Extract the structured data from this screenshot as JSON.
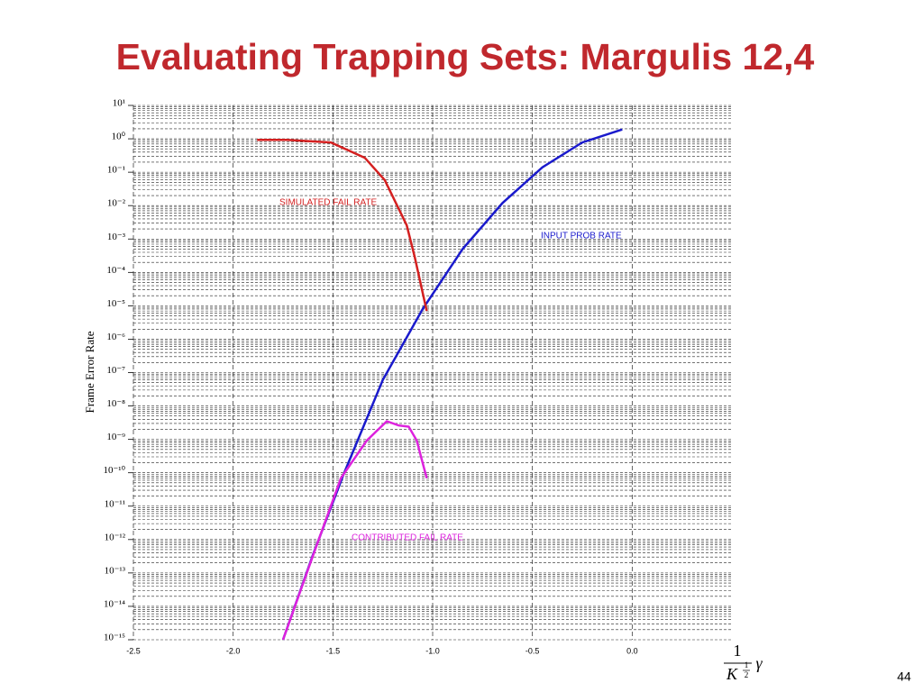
{
  "chart_data": {
    "type": "line",
    "title": "Evaluating Trapping Sets: Margulis 12,4",
    "y_label": "Frame Error Rate",
    "x_label": {
      "numerator": "1",
      "base": "K",
      "exponent_numerator": "1",
      "exponent_denominator": "2",
      "symbol": "γ"
    },
    "y_log": true,
    "grid": true,
    "minor_grid": true,
    "xlim": [
      -2.5,
      0.5
    ],
    "ylim": [
      1e-15,
      10
    ],
    "xticks": [
      -2.5,
      {
        "value": -2,
        "label": "-2.0"
      },
      -1.5,
      {
        "value": -1,
        "label": "-1.0"
      },
      -0.5,
      {
        "value": 0,
        "label": "0.0"
      }
    ],
    "yticks": [
      {
        "value": 10,
        "label": "10¹"
      },
      {
        "value": 1,
        "label": "10⁰"
      },
      {
        "value": 0.1,
        "label": "10⁻¹"
      },
      {
        "value": 0.01,
        "label": "10⁻²"
      },
      {
        "value": 0.001,
        "label": "10⁻³"
      },
      {
        "value": 0.0001,
        "label": "10⁻⁴"
      },
      {
        "value": 1e-05,
        "label": "10⁻⁵"
      },
      {
        "value": 1e-06,
        "label": "10⁻⁶"
      },
      {
        "value": 1e-07,
        "label": "10⁻⁷"
      },
      {
        "value": 1e-08,
        "label": "10⁻⁸"
      },
      {
        "value": 1e-09,
        "label": "10⁻⁹"
      },
      {
        "value": 1e-10,
        "label": "10⁻¹⁰"
      },
      {
        "value": 1e-11,
        "label": "10⁻¹¹"
      },
      {
        "value": 1e-12,
        "label": "10⁻¹²"
      },
      {
        "value": 1e-13,
        "label": "10⁻¹³"
      },
      {
        "value": 1e-14,
        "label": "10⁻¹⁴"
      },
      {
        "value": 1e-15,
        "label": "10⁻¹⁵"
      }
    ],
    "series": [
      {
        "name": "INPUT PROB RATE",
        "color": "#1a1acc",
        "x": [
          -1.75,
          -1.6,
          -1.45,
          -1.25,
          -1.05,
          -0.85,
          -0.65,
          -0.45,
          -0.25,
          -0.05
        ],
        "values": [
          1e-15,
          3.5e-13,
          8e-11,
          6e-08,
          8e-06,
          0.0005,
          0.012,
          0.14,
          0.78,
          1.9
        ]
      },
      {
        "name": "SIMULATED FAIL RATE",
        "color": "#d42020",
        "x": [
          -1.88,
          -1.73,
          -1.51,
          -1.34,
          -1.24,
          -1.13,
          -1.09,
          -1.03
        ],
        "values": [
          0.93,
          0.93,
          0.78,
          0.27,
          0.058,
          0.0026,
          0.00029,
          7e-06
        ]
      },
      {
        "name": "CONTRIBUTED FAIL RATE",
        "color": "#dd22dd",
        "x": [
          -1.75,
          -1.59,
          -1.46,
          -1.33,
          -1.23,
          -1.17,
          -1.12,
          -1.08,
          -1.03
        ],
        "values": [
          1e-15,
          4.8e-13,
          6.9e-11,
          9.3e-10,
          3.5e-09,
          2.6e-09,
          2.4e-09,
          9.3e-10,
          6.9e-11
        ]
      }
    ],
    "page_number": "44"
  }
}
